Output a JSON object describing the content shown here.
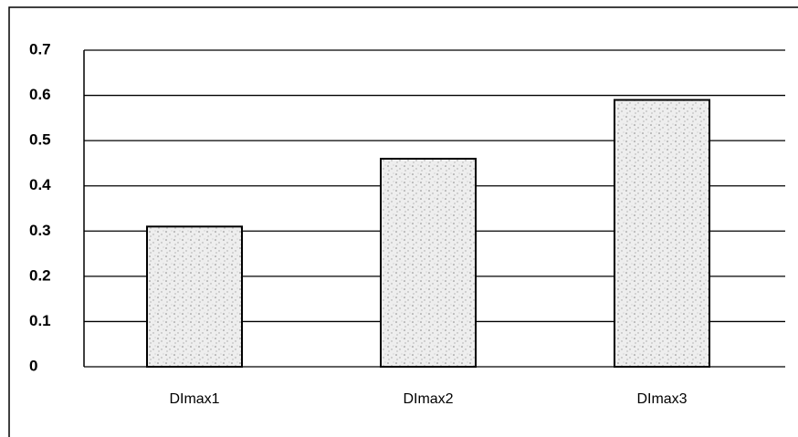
{
  "chart_data": {
    "type": "bar",
    "categories": [
      "DImax1",
      "DImax2",
      "DImax3"
    ],
    "values": [
      0.31,
      0.46,
      0.59
    ],
    "color": "#d4d4d4",
    "ylim": [
      0,
      0.7
    ],
    "yticks": [
      0,
      0.1,
      0.2,
      0.3,
      0.4,
      0.5,
      0.6,
      0.7
    ],
    "grid": true
  }
}
